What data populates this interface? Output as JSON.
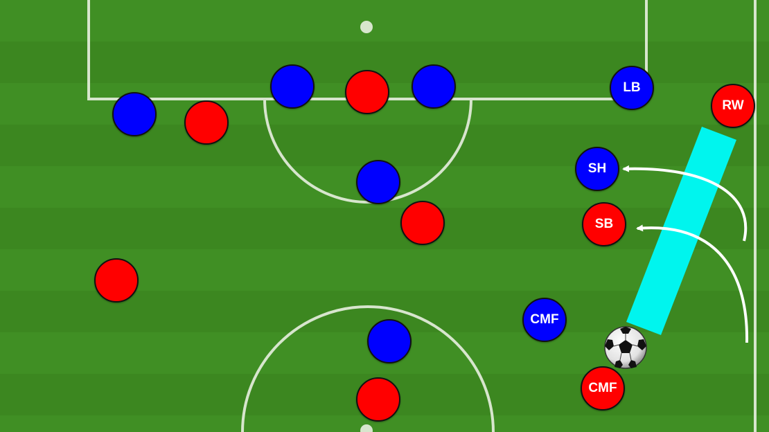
{
  "colors": {
    "home_team": "#ff0000",
    "away_team": "#0000ff",
    "highlight_zone": "#00f5ee",
    "pitch_dark": "#3c8720",
    "pitch_light": "#4a9a2c",
    "line": "#e8efe0",
    "arrow": "#ffffff"
  },
  "players": {
    "blue_left_wide": {
      "label": ""
    },
    "red_left_wide": {
      "label": ""
    },
    "blue_center_left": {
      "label": ""
    },
    "red_center_top": {
      "label": ""
    },
    "blue_center_right": {
      "label": ""
    },
    "blue_lb": {
      "label": "LB"
    },
    "red_rw": {
      "label": "RW"
    },
    "blue_sh": {
      "label": "SH"
    },
    "red_sb": {
      "label": "SB"
    },
    "blue_mid": {
      "label": ""
    },
    "red_mid": {
      "label": ""
    },
    "red_left_deep": {
      "label": ""
    },
    "blue_cmf": {
      "label": "CMF"
    },
    "blue_bottom_center": {
      "label": ""
    },
    "red_bottom_center": {
      "label": ""
    },
    "red_cmf": {
      "label": "CMF"
    }
  },
  "ball": {
    "icon": "soccer-ball-icon"
  }
}
